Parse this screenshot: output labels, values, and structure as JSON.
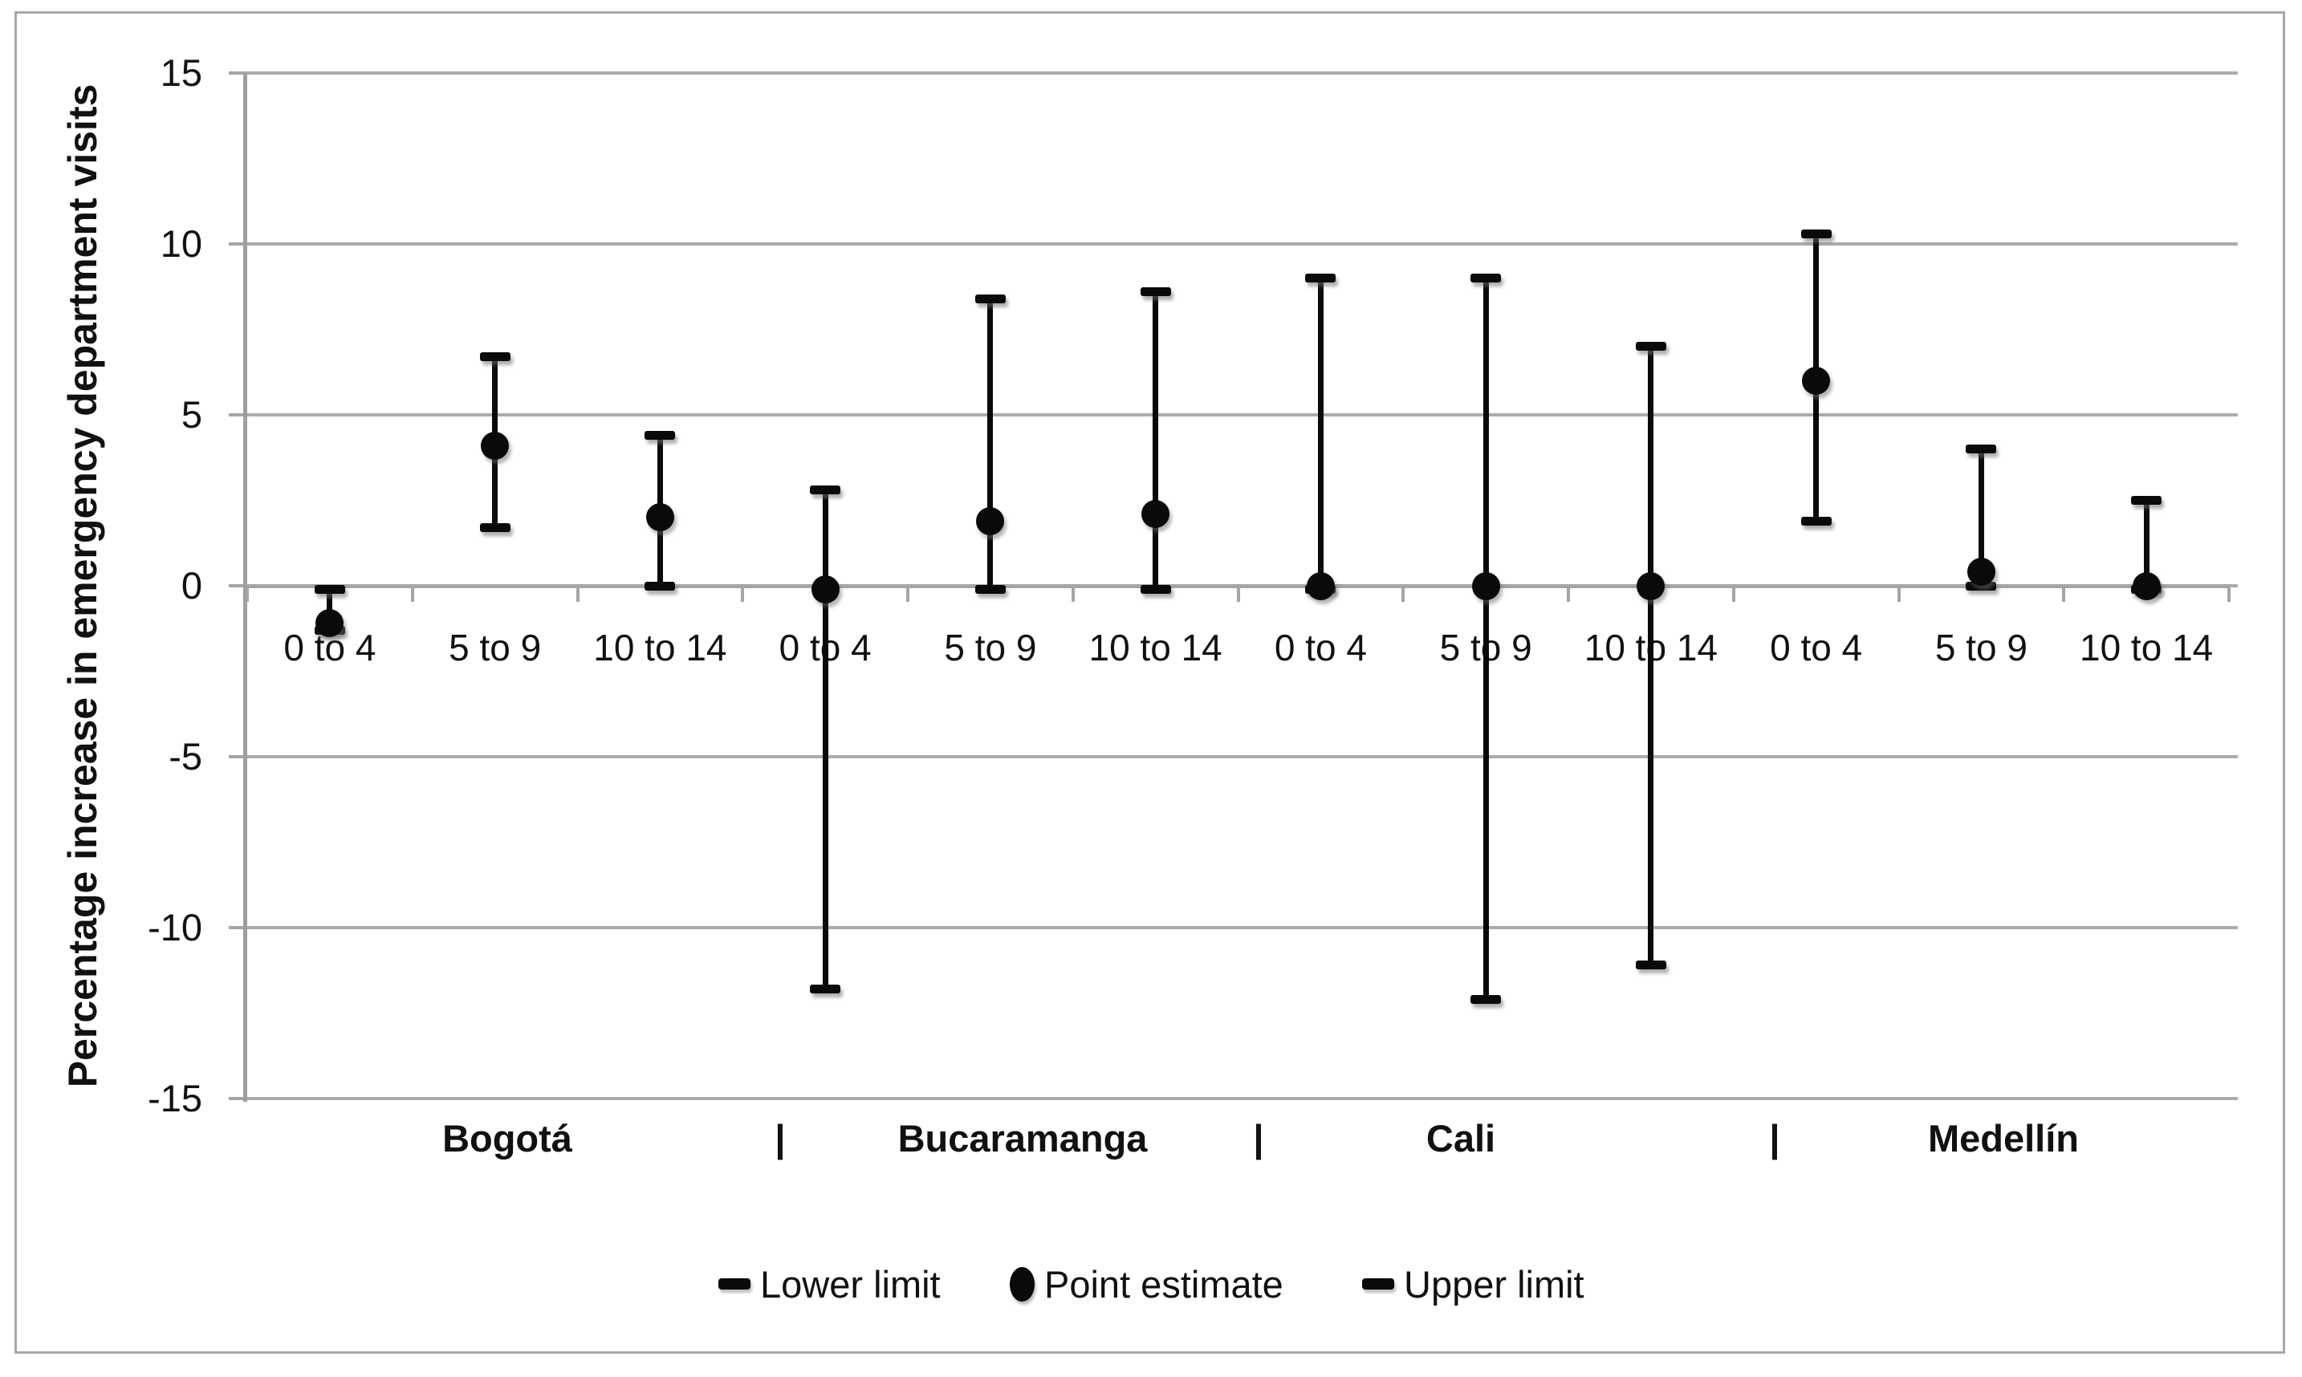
{
  "figure": {
    "y_axis_title": "Percentage increase in emergency department visits",
    "separator_glyph": "|"
  },
  "legend": [
    {
      "label": "Lower limit",
      "marker": "dash"
    },
    {
      "label": "Point estimate",
      "marker": "circle"
    },
    {
      "label": "Upper limit",
      "marker": "dash"
    }
  ],
  "colors": {
    "data": "#0a0a0a",
    "gridline": "#ababab",
    "axis": "#a5a5a5",
    "figure_border": "#a8a8a8",
    "background": "#ffffff"
  },
  "chart_data": {
    "type": "scatter",
    "subtype": "error-bar",
    "title": "",
    "xlabel": "",
    "ylabel": "Percentage increase in emergency department visits",
    "ylim": [
      -15,
      15
    ],
    "yticks": [
      15,
      10,
      5,
      0,
      -5,
      -10,
      -15
    ],
    "grid": true,
    "legend_position": "bottom",
    "age_labels": [
      "0 to 4",
      "5 to 9",
      "10 to 14"
    ],
    "groups": [
      {
        "city": "Bogotá",
        "points": [
          {
            "age": "0 to 4",
            "lower": -1.3,
            "point": -1.1,
            "upper": -0.1
          },
          {
            "age": "5 to 9",
            "lower": 1.7,
            "point": 4.1,
            "upper": 6.7
          },
          {
            "age": "10 to 14",
            "lower": 0.0,
            "point": 2.0,
            "upper": 4.4
          }
        ]
      },
      {
        "city": "Bucaramanga",
        "points": [
          {
            "age": "0 to 4",
            "lower": -11.8,
            "point": -0.1,
            "upper": 2.8
          },
          {
            "age": "5 to 9",
            "lower": -0.1,
            "point": 1.9,
            "upper": 8.4
          },
          {
            "age": "10 to 14",
            "lower": -0.1,
            "point": 2.1,
            "upper": 8.6
          }
        ]
      },
      {
        "city": "Cali",
        "points": [
          {
            "age": "0 to 4",
            "lower": -0.1,
            "point": 0.0,
            "upper": 9.0
          },
          {
            "age": "5 to 9",
            "lower": -12.1,
            "point": 0.0,
            "upper": 9.0
          },
          {
            "age": "10 to 14",
            "lower": -11.1,
            "point": 0.0,
            "upper": 7.0
          }
        ]
      },
      {
        "city": "Medellín",
        "points": [
          {
            "age": "0 to 4",
            "lower": 1.9,
            "point": 6.0,
            "upper": 10.3
          },
          {
            "age": "5 to 9",
            "lower": 0.0,
            "point": 0.4,
            "upper": 4.0
          },
          {
            "age": "10 to 14",
            "lower": -0.1,
            "point": 0.0,
            "upper": 2.5
          }
        ]
      }
    ]
  }
}
